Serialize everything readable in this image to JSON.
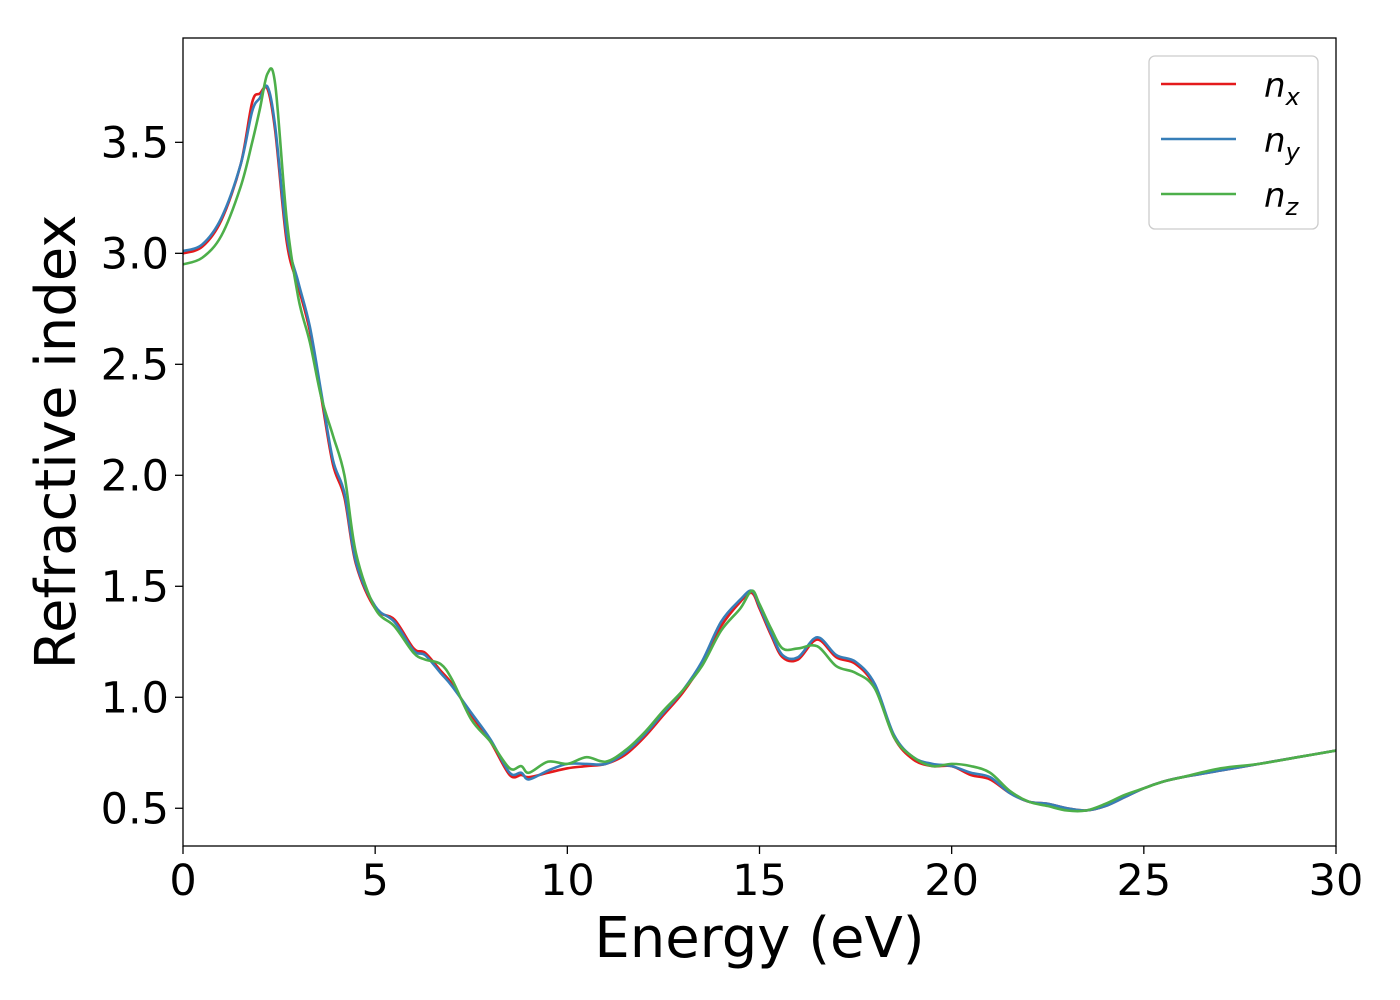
{
  "chart_data": {
    "type": "line",
    "xlabel": "Energy (eV)",
    "ylabel": "Refractive index",
    "xlim": [
      0,
      30
    ],
    "ylim": [
      0.33,
      3.97
    ],
    "xticks": [
      "0",
      "5",
      "10",
      "15",
      "20",
      "25",
      "30"
    ],
    "yticks": [
      "0.5",
      "1.0",
      "1.5",
      "2.0",
      "2.5",
      "3.0",
      "3.5"
    ],
    "grid": false,
    "legend_position": "top-right",
    "series": [
      {
        "name": "n_x",
        "label_base": "n",
        "label_sub": "x",
        "color": "#e41a1c",
        "points": [
          [
            0,
            3.0
          ],
          [
            0.5,
            3.03
          ],
          [
            1.0,
            3.15
          ],
          [
            1.5,
            3.4
          ],
          [
            1.8,
            3.68
          ],
          [
            2.0,
            3.72
          ],
          [
            2.2,
            3.74
          ],
          [
            2.4,
            3.55
          ],
          [
            2.7,
            3.05
          ],
          [
            3.0,
            2.85
          ],
          [
            3.3,
            2.65
          ],
          [
            3.6,
            2.35
          ],
          [
            3.9,
            2.05
          ],
          [
            4.2,
            1.9
          ],
          [
            4.5,
            1.6
          ],
          [
            5.0,
            1.4
          ],
          [
            5.5,
            1.35
          ],
          [
            6.0,
            1.22
          ],
          [
            6.3,
            1.2
          ],
          [
            6.7,
            1.12
          ],
          [
            7.0,
            1.06
          ],
          [
            7.5,
            0.92
          ],
          [
            8.0,
            0.8
          ],
          [
            8.5,
            0.65
          ],
          [
            8.8,
            0.65
          ],
          [
            9.0,
            0.64
          ],
          [
            9.5,
            0.66
          ],
          [
            10.0,
            0.68
          ],
          [
            10.5,
            0.69
          ],
          [
            11.0,
            0.7
          ],
          [
            11.5,
            0.74
          ],
          [
            12.0,
            0.82
          ],
          [
            12.5,
            0.92
          ],
          [
            13.0,
            1.02
          ],
          [
            13.5,
            1.15
          ],
          [
            14.0,
            1.32
          ],
          [
            14.5,
            1.43
          ],
          [
            14.8,
            1.47
          ],
          [
            15.0,
            1.4
          ],
          [
            15.3,
            1.28
          ],
          [
            15.6,
            1.18
          ],
          [
            16.0,
            1.17
          ],
          [
            16.5,
            1.26
          ],
          [
            17.0,
            1.18
          ],
          [
            17.5,
            1.15
          ],
          [
            18.0,
            1.05
          ],
          [
            18.5,
            0.82
          ],
          [
            19.0,
            0.72
          ],
          [
            19.5,
            0.69
          ],
          [
            20.0,
            0.69
          ],
          [
            20.5,
            0.65
          ],
          [
            21.0,
            0.63
          ],
          [
            21.5,
            0.57
          ],
          [
            22.0,
            0.53
          ],
          [
            22.5,
            0.52
          ],
          [
            23.0,
            0.5
          ],
          [
            23.5,
            0.49
          ],
          [
            24.0,
            0.51
          ],
          [
            24.5,
            0.55
          ],
          [
            25.0,
            0.59
          ],
          [
            25.5,
            0.62
          ],
          [
            26.0,
            0.64
          ],
          [
            27.0,
            0.67
          ],
          [
            28.0,
            0.7
          ],
          [
            29.0,
            0.73
          ],
          [
            30.0,
            0.76
          ]
        ]
      },
      {
        "name": "n_y",
        "label_base": "n",
        "label_sub": "y",
        "color": "#377eb8",
        "points": [
          [
            0,
            3.01
          ],
          [
            0.5,
            3.04
          ],
          [
            1.0,
            3.16
          ],
          [
            1.5,
            3.4
          ],
          [
            1.8,
            3.64
          ],
          [
            2.0,
            3.7
          ],
          [
            2.2,
            3.75
          ],
          [
            2.4,
            3.57
          ],
          [
            2.7,
            3.08
          ],
          [
            3.0,
            2.87
          ],
          [
            3.3,
            2.67
          ],
          [
            3.6,
            2.37
          ],
          [
            3.9,
            2.07
          ],
          [
            4.2,
            1.92
          ],
          [
            4.5,
            1.61
          ],
          [
            5.0,
            1.41
          ],
          [
            5.5,
            1.34
          ],
          [
            6.0,
            1.21
          ],
          [
            6.3,
            1.19
          ],
          [
            6.7,
            1.11
          ],
          [
            7.0,
            1.05
          ],
          [
            7.5,
            0.93
          ],
          [
            8.0,
            0.81
          ],
          [
            8.5,
            0.66
          ],
          [
            8.8,
            0.66
          ],
          [
            9.0,
            0.63
          ],
          [
            9.5,
            0.67
          ],
          [
            10.0,
            0.7
          ],
          [
            10.5,
            0.7
          ],
          [
            11.0,
            0.7
          ],
          [
            11.5,
            0.75
          ],
          [
            12.0,
            0.83
          ],
          [
            12.5,
            0.93
          ],
          [
            13.0,
            1.03
          ],
          [
            13.5,
            1.16
          ],
          [
            14.0,
            1.34
          ],
          [
            14.5,
            1.44
          ],
          [
            14.8,
            1.48
          ],
          [
            15.0,
            1.41
          ],
          [
            15.3,
            1.29
          ],
          [
            15.6,
            1.19
          ],
          [
            16.0,
            1.18
          ],
          [
            16.5,
            1.27
          ],
          [
            17.0,
            1.19
          ],
          [
            17.5,
            1.16
          ],
          [
            18.0,
            1.06
          ],
          [
            18.5,
            0.83
          ],
          [
            19.0,
            0.73
          ],
          [
            19.5,
            0.7
          ],
          [
            20.0,
            0.69
          ],
          [
            20.5,
            0.66
          ],
          [
            21.0,
            0.64
          ],
          [
            21.5,
            0.57
          ],
          [
            22.0,
            0.53
          ],
          [
            22.5,
            0.52
          ],
          [
            23.0,
            0.5
          ],
          [
            23.5,
            0.49
          ],
          [
            24.0,
            0.51
          ],
          [
            24.5,
            0.55
          ],
          [
            25.0,
            0.59
          ],
          [
            25.5,
            0.62
          ],
          [
            26.0,
            0.64
          ],
          [
            27.0,
            0.67
          ],
          [
            28.0,
            0.7
          ],
          [
            29.0,
            0.73
          ],
          [
            30.0,
            0.76
          ]
        ]
      },
      {
        "name": "n_z",
        "label_base": "n",
        "label_sub": "z",
        "color": "#4daf4a",
        "points": [
          [
            0,
            2.95
          ],
          [
            0.5,
            2.98
          ],
          [
            1.0,
            3.08
          ],
          [
            1.5,
            3.3
          ],
          [
            1.8,
            3.5
          ],
          [
            2.0,
            3.65
          ],
          [
            2.2,
            3.81
          ],
          [
            2.4,
            3.76
          ],
          [
            2.7,
            3.15
          ],
          [
            3.0,
            2.8
          ],
          [
            3.3,
            2.6
          ],
          [
            3.6,
            2.35
          ],
          [
            3.9,
            2.18
          ],
          [
            4.2,
            2.0
          ],
          [
            4.5,
            1.65
          ],
          [
            5.0,
            1.4
          ],
          [
            5.5,
            1.32
          ],
          [
            6.0,
            1.2
          ],
          [
            6.3,
            1.17
          ],
          [
            6.7,
            1.15
          ],
          [
            7.0,
            1.08
          ],
          [
            7.5,
            0.9
          ],
          [
            8.0,
            0.8
          ],
          [
            8.5,
            0.68
          ],
          [
            8.8,
            0.69
          ],
          [
            9.0,
            0.66
          ],
          [
            9.5,
            0.71
          ],
          [
            10.0,
            0.7
          ],
          [
            10.5,
            0.73
          ],
          [
            11.0,
            0.71
          ],
          [
            11.5,
            0.76
          ],
          [
            12.0,
            0.84
          ],
          [
            12.5,
            0.94
          ],
          [
            13.0,
            1.03
          ],
          [
            13.5,
            1.14
          ],
          [
            14.0,
            1.3
          ],
          [
            14.5,
            1.4
          ],
          [
            14.8,
            1.48
          ],
          [
            15.0,
            1.42
          ],
          [
            15.3,
            1.31
          ],
          [
            15.6,
            1.22
          ],
          [
            16.0,
            1.22
          ],
          [
            16.5,
            1.23
          ],
          [
            17.0,
            1.14
          ],
          [
            17.5,
            1.11
          ],
          [
            18.0,
            1.04
          ],
          [
            18.5,
            0.82
          ],
          [
            19.0,
            0.73
          ],
          [
            19.5,
            0.69
          ],
          [
            20.0,
            0.7
          ],
          [
            20.5,
            0.69
          ],
          [
            21.0,
            0.66
          ],
          [
            21.5,
            0.58
          ],
          [
            22.0,
            0.53
          ],
          [
            22.5,
            0.51
          ],
          [
            23.0,
            0.49
          ],
          [
            23.5,
            0.49
          ],
          [
            24.0,
            0.52
          ],
          [
            24.5,
            0.56
          ],
          [
            25.0,
            0.59
          ],
          [
            25.5,
            0.62
          ],
          [
            26.0,
            0.64
          ],
          [
            27.0,
            0.68
          ],
          [
            28.0,
            0.7
          ],
          [
            29.0,
            0.73
          ],
          [
            30.0,
            0.76
          ]
        ]
      }
    ]
  }
}
